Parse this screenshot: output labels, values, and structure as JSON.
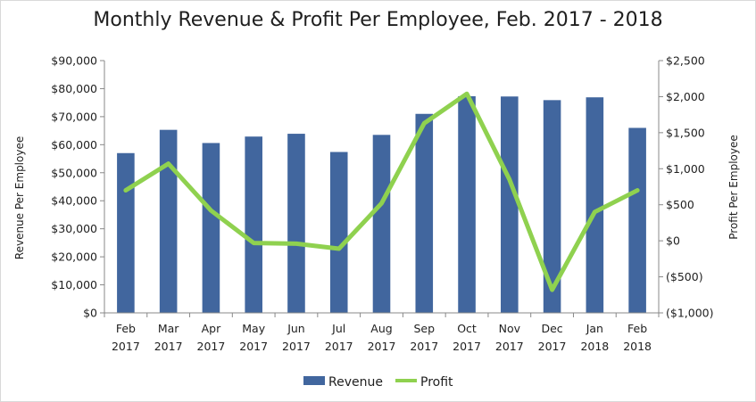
{
  "chart_data": {
    "type": "bar",
    "title": "Monthly Revenue & Profit Per Employee, Feb. 2017 - 2018",
    "ylabel_left": "Revenue Per Employee",
    "ylabel_right": "Profit Per Employee",
    "categories": [
      [
        "Feb",
        "2017"
      ],
      [
        "Mar",
        "2017"
      ],
      [
        "Apr",
        "2017"
      ],
      [
        "May",
        "2017"
      ],
      [
        "Jun",
        "2017"
      ],
      [
        "Jul",
        "2017"
      ],
      [
        "Aug",
        "2017"
      ],
      [
        "Sep",
        "2017"
      ],
      [
        "Oct",
        "2017"
      ],
      [
        "Nov",
        "2017"
      ],
      [
        "Dec",
        "2017"
      ],
      [
        "Jan",
        "2018"
      ],
      [
        "Feb",
        "2018"
      ]
    ],
    "ylim_left": [
      0,
      90000
    ],
    "ylim_right": [
      -1000,
      2500
    ],
    "yticks_left": [
      "$0",
      "$10,000",
      "$20,000",
      "$30,000",
      "$40,000",
      "$50,000",
      "$60,000",
      "$70,000",
      "$80,000",
      "$90,000"
    ],
    "yticks_right": [
      "($1,000)",
      "($500)",
      "$0",
      "$500",
      "$1,000",
      "$1,500",
      "$2,000",
      "$2,500"
    ],
    "series": [
      {
        "name": "Revenue",
        "type": "bar",
        "axis": "left",
        "color": "#41669e",
        "values": [
          57000,
          65300,
          60600,
          62900,
          63900,
          57400,
          63500,
          71000,
          77300,
          77200,
          75900,
          76900,
          66000
        ]
      },
      {
        "name": "Profit",
        "type": "line",
        "axis": "right",
        "color": "#8fd14f",
        "values": [
          700,
          1070,
          420,
          -30,
          -40,
          -110,
          520,
          1630,
          2040,
          850,
          -680,
          400,
          700
        ]
      }
    ],
    "grid": false,
    "legend_position": "bottom"
  }
}
